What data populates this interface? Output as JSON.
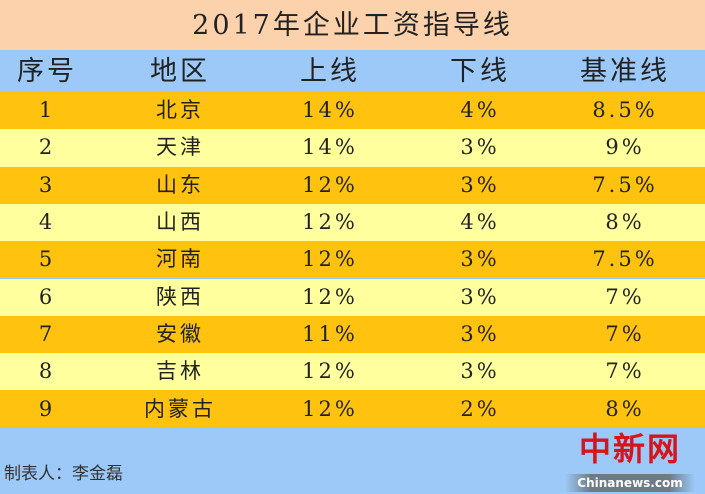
{
  "title": "2017年企业工资指导线",
  "colors": {
    "title_bg": "#fbd2ac",
    "header_bg": "#9cc9f7",
    "row_odd": "#ffc20e",
    "row_even": "#ffff9e"
  },
  "chart_data": {
    "type": "table",
    "title": "2017年企业工资指导线",
    "columns": [
      "序号",
      "地区",
      "上线",
      "下线",
      "基准线"
    ],
    "rows": [
      [
        "1",
        "北京",
        "14%",
        "4%",
        "8.5%"
      ],
      [
        "2",
        "天津",
        "14%",
        "3%",
        "9%"
      ],
      [
        "3",
        "山东",
        "12%",
        "3%",
        "7.5%"
      ],
      [
        "4",
        "山西",
        "12%",
        "4%",
        "8%"
      ],
      [
        "5",
        "河南",
        "12%",
        "3%",
        "7.5%"
      ],
      [
        "6",
        "陕西",
        "12%",
        "3%",
        "7%"
      ],
      [
        "7",
        "安徽",
        "11%",
        "3%",
        "7%"
      ],
      [
        "8",
        "吉林",
        "12%",
        "3%",
        "7%"
      ],
      [
        "9",
        "内蒙古",
        "12%",
        "2%",
        "8%"
      ]
    ]
  },
  "footer": {
    "author": "制表人：李金磊",
    "logo_cn": "中新网",
    "logo_en": "Chinanews.com"
  }
}
